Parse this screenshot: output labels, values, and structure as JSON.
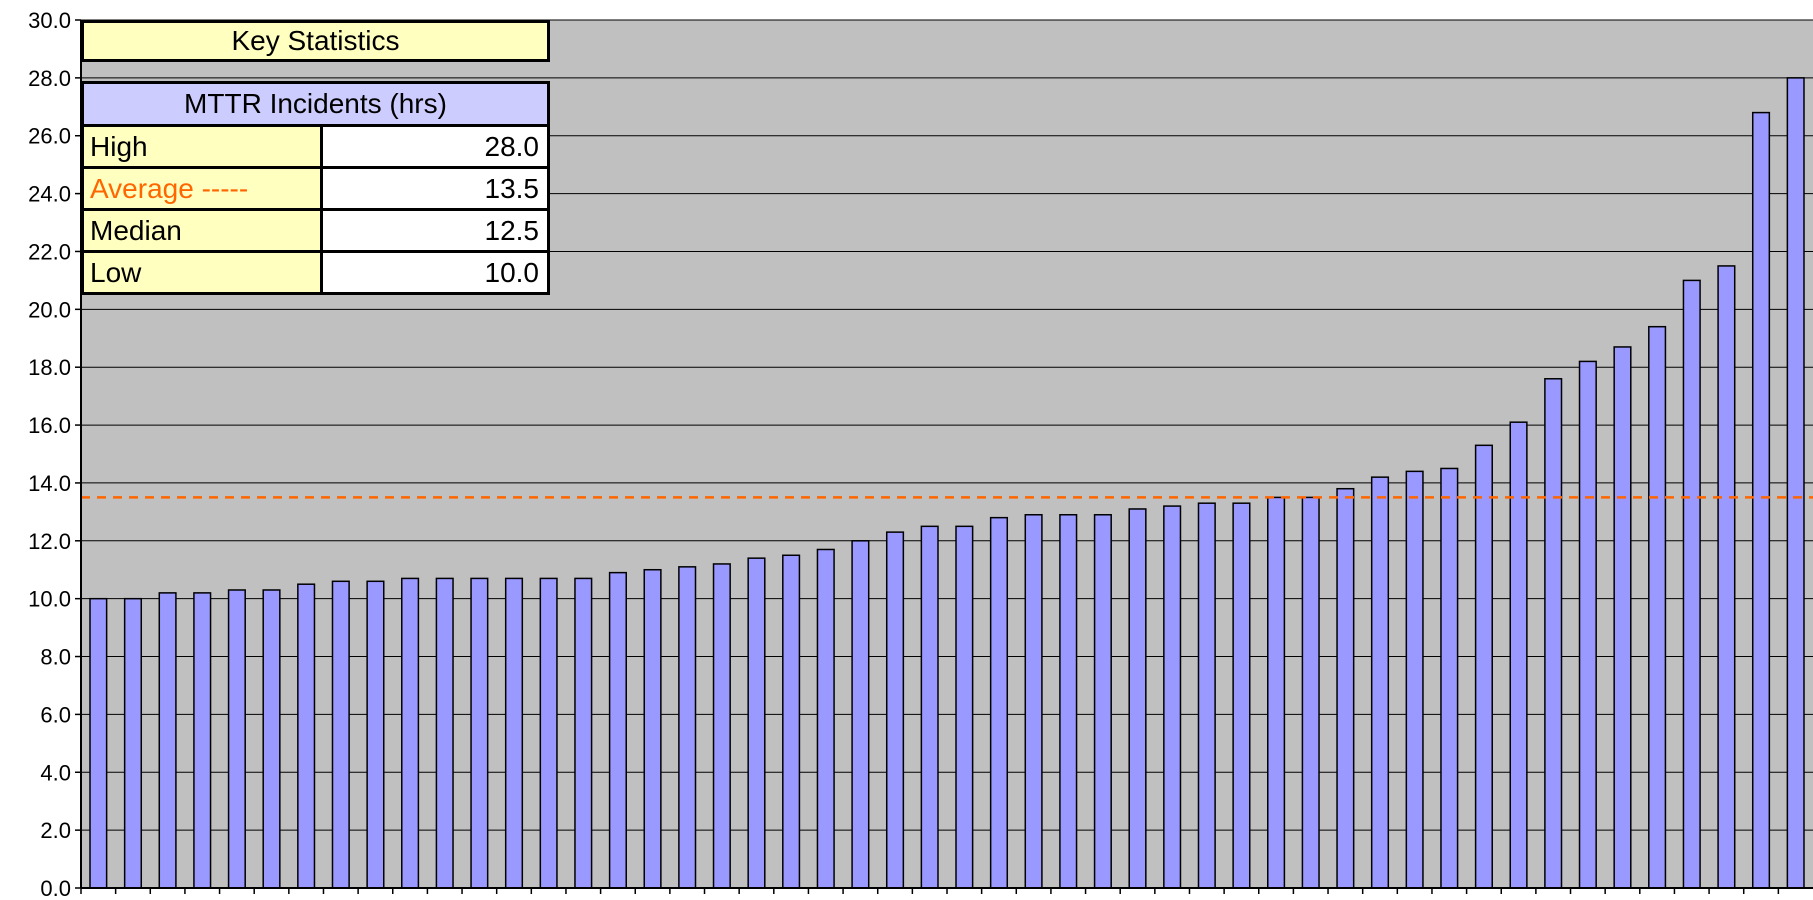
{
  "colors": {
    "plot_background": "#c0c0c0",
    "bar_fill": "#9999ff",
    "average_line": "#ff6600",
    "panel_yellow": "#ffffc0",
    "panel_lavender": "#ccccff"
  },
  "stats_panel": {
    "title": "Key Statistics",
    "header": "MTTR Incidents (hrs)",
    "rows": [
      {
        "label": "High",
        "value": "28.0",
        "color": "#000000"
      },
      {
        "label": "Average -----",
        "value": "13.5",
        "color": "#ff6600"
      },
      {
        "label": "Median",
        "value": "12.5",
        "color": "#000000"
      },
      {
        "label": "Low",
        "value": "10.0",
        "color": "#000000"
      }
    ]
  },
  "chart_data": {
    "type": "bar",
    "title": "",
    "xlabel": "",
    "ylabel": "",
    "ylim": [
      0,
      30
    ],
    "y_ticks": [
      "0.0",
      "2.0",
      "4.0",
      "6.0",
      "8.0",
      "10.0",
      "12.0",
      "14.0",
      "16.0",
      "18.0",
      "20.0",
      "22.0",
      "24.0",
      "26.0",
      "28.0",
      "30.0"
    ],
    "grid": true,
    "legend": "none",
    "average_line": 13.5,
    "values": [
      10.0,
      10.0,
      10.2,
      10.2,
      10.3,
      10.3,
      10.5,
      10.6,
      10.6,
      10.7,
      10.7,
      10.7,
      10.7,
      10.7,
      10.7,
      10.9,
      11.0,
      11.1,
      11.2,
      11.4,
      11.5,
      11.7,
      12.0,
      12.3,
      12.5,
      12.5,
      12.8,
      12.9,
      12.9,
      12.9,
      13.1,
      13.2,
      13.3,
      13.3,
      13.5,
      13.5,
      13.8,
      14.2,
      14.4,
      14.5,
      15.3,
      16.1,
      17.6,
      18.2,
      18.7,
      19.4,
      21.0,
      21.5,
      26.8,
      28.0
    ]
  }
}
